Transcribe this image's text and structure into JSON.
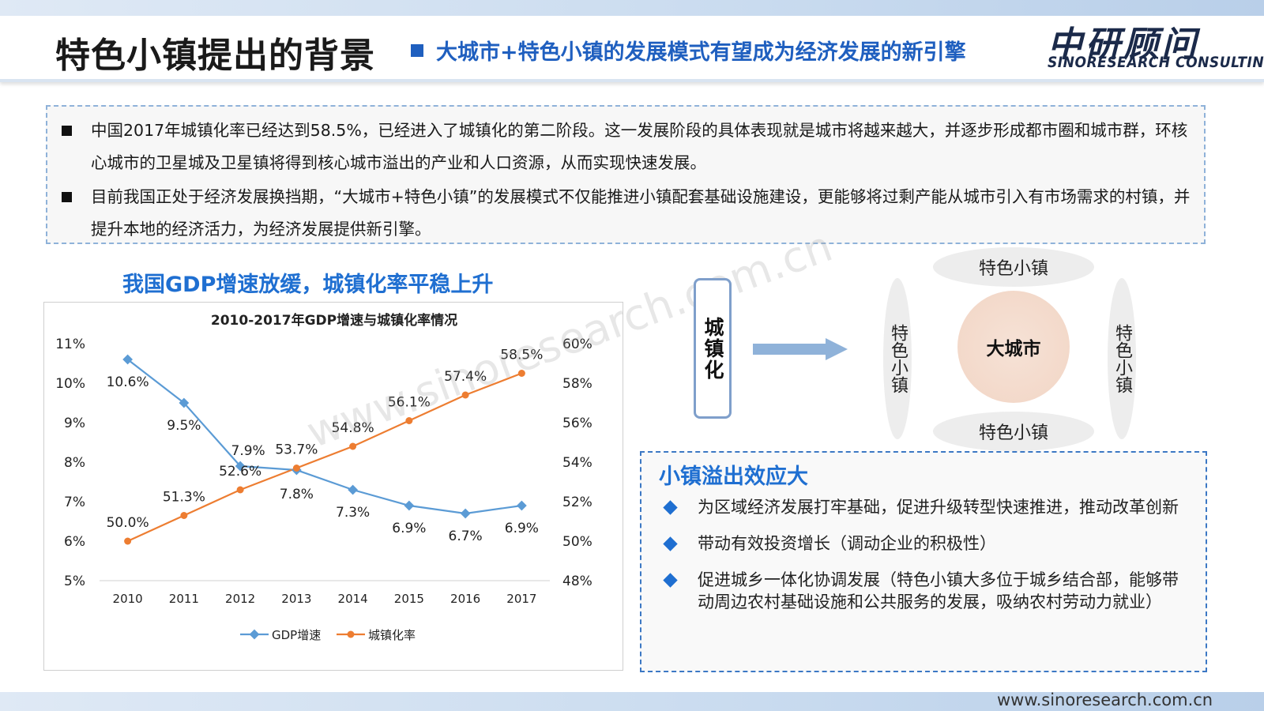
{
  "header": {
    "title": "特色小镇提出的背景",
    "subtitle": "大城市+特色小镇的发展模式有望成为经济发展的新引擎",
    "logo_cn": "中研顾问",
    "logo_en": "SINORESEARCH CONSULTING"
  },
  "intro": [
    "中国2017年城镇化率已经达到58.5%，已经进入了城镇化的第二阶段。这一发展阶段的具体表现就是城市将越来越大，并逐步形成都市圈和城市群，环核心城市的卫星城及卫星镇将得到核心城市溢出的产业和人口资源，从而实现快速发展。",
    "目前我国正处于经济发展换挡期，“大城市+特色小镇”的发展模式不仅能推进小镇配套基础设施建设，更能够将过剩产能从城市引入有市场需求的村镇，并提升本地的经济活力，为经济发展提供新引擎。"
  ],
  "chart_heading": "我国GDP增速放缓，城镇化率平稳上升",
  "chart_data": {
    "type": "line",
    "title": "2010-2017年GDP增速与城镇化率情况",
    "x": [
      "2010",
      "2011",
      "2012",
      "2013",
      "2014",
      "2015",
      "2016",
      "2017"
    ],
    "series": [
      {
        "name": "GDP增速",
        "axis": "left",
        "color": "#5b9bd5",
        "values": [
          10.6,
          9.5,
          7.9,
          7.8,
          7.3,
          6.9,
          6.7,
          6.9
        ],
        "labels": [
          "10.6%",
          "9.5%",
          "7.9%",
          "7.8%",
          "7.3%",
          "6.9%",
          "6.7%",
          "6.9%"
        ]
      },
      {
        "name": "城镇化率",
        "axis": "right",
        "color": "#ed7d31",
        "values": [
          50.0,
          51.3,
          52.6,
          53.7,
          54.8,
          56.1,
          57.4,
          58.5
        ],
        "labels": [
          "50.0%",
          "51.3%",
          "52.6%",
          "53.7%",
          "54.8%",
          "56.1%",
          "57.4%",
          "58.5%"
        ]
      }
    ],
    "y_left": {
      "min": 5,
      "max": 11,
      "ticks": [
        "5%",
        "6%",
        "7%",
        "8%",
        "9%",
        "10%",
        "11%"
      ]
    },
    "y_right": {
      "min": 48,
      "max": 60,
      "ticks": [
        "48%",
        "50%",
        "52%",
        "54%",
        "56%",
        "58%",
        "60%"
      ]
    },
    "grid": false,
    "legend": "bottom"
  },
  "watermark": "www.sinoresearch.com.cn",
  "diagram": {
    "urbanization": "城镇化",
    "center": "大城市",
    "top": "特色小镇",
    "bottom": "特色小镇",
    "left": "特色小镇",
    "right": "特色小镇"
  },
  "effect": {
    "title": "小镇溢出效应大",
    "items": [
      "为区域经济发展打牢基础，促进升级转型快速推进，推动改革创新",
      "带动有效投资增长（调动企业的积极性）",
      "促进城乡一体化协调发展（特色小镇大多位于城乡结合部，能够带动周边农村基础设施和公共服务的发展，吸纳农村劳动力就业）"
    ]
  },
  "footer": {
    "url": "www.sinoresearch.com.cn"
  }
}
